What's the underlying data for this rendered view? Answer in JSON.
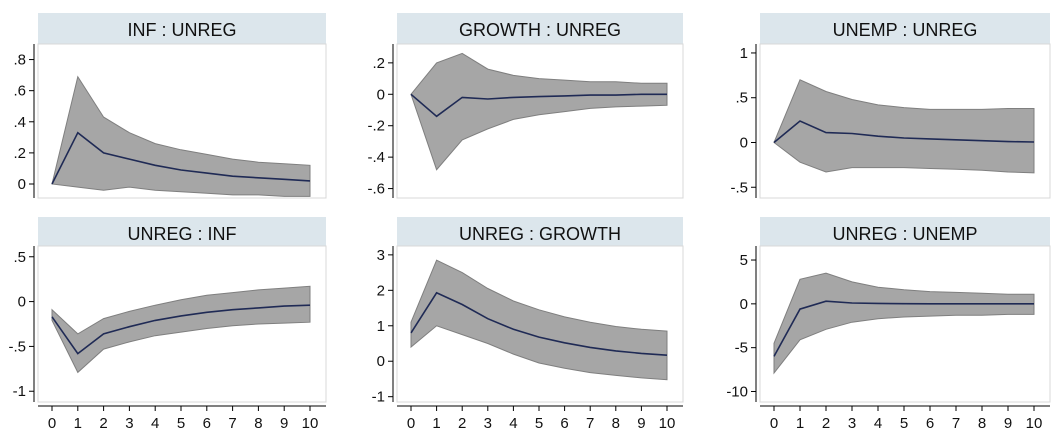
{
  "colors": {
    "band_fill": "#a6a6a6",
    "band_stroke": "#7f7f7f",
    "line": "#1f2a55",
    "title_bg": "#dce6ec",
    "plot_bg": "#ffffff",
    "frame": "#d8d8d8",
    "axis": "#000000"
  },
  "chart_data": [
    {
      "type": "area",
      "title": "INF : UNREG",
      "x": [
        0,
        1,
        2,
        3,
        4,
        5,
        6,
        7,
        8,
        9,
        10
      ],
      "series": [
        {
          "values": [
            0,
            0.33,
            0.2,
            0.16,
            0.12,
            0.09,
            0.07,
            0.05,
            0.04,
            0.03,
            0.02
          ]
        },
        {
          "values": [
            0,
            0.69,
            0.43,
            0.33,
            0.26,
            0.22,
            0.19,
            0.16,
            0.14,
            0.13,
            0.12
          ]
        },
        {
          "values": [
            0,
            -0.02,
            -0.04,
            -0.02,
            -0.04,
            -0.05,
            -0.06,
            -0.07,
            -0.07,
            -0.08,
            -0.08
          ]
        }
      ],
      "ylim": [
        -0.09,
        0.9
      ],
      "yticks": [
        0,
        0.2,
        0.4,
        0.6,
        0.8
      ],
      "ytick_labels": [
        "0",
        ".2",
        ".4",
        ".6",
        ".8"
      ],
      "xticks": [],
      "xtick_labels": []
    },
    {
      "type": "area",
      "title": "GROWTH : UNREG",
      "x": [
        0,
        1,
        2,
        3,
        4,
        5,
        6,
        7,
        8,
        9,
        10
      ],
      "series": [
        {
          "values": [
            0,
            -0.14,
            -0.02,
            -0.03,
            -0.02,
            -0.015,
            -0.01,
            -0.005,
            -0.005,
            0,
            0
          ]
        },
        {
          "values": [
            0,
            0.2,
            0.26,
            0.16,
            0.12,
            0.1,
            0.09,
            0.08,
            0.08,
            0.07,
            0.07
          ]
        },
        {
          "values": [
            0,
            -0.48,
            -0.29,
            -0.22,
            -0.16,
            -0.13,
            -0.11,
            -0.09,
            -0.08,
            -0.075,
            -0.07
          ]
        }
      ],
      "ylim": [
        -0.66,
        0.32
      ],
      "yticks": [
        0.2,
        0,
        -0.2,
        -0.4,
        -0.6
      ],
      "ytick_labels": [
        ".2",
        "0",
        "-.2",
        "-.4",
        "-.6"
      ],
      "xticks": [],
      "xtick_labels": []
    },
    {
      "type": "area",
      "title": "UNEMP : UNREG",
      "x": [
        0,
        1,
        2,
        3,
        4,
        5,
        6,
        7,
        8,
        9,
        10
      ],
      "series": [
        {
          "values": [
            0,
            0.24,
            0.11,
            0.1,
            0.07,
            0.05,
            0.04,
            0.03,
            0.02,
            0.01,
            0.005
          ]
        },
        {
          "values": [
            0,
            0.7,
            0.57,
            0.48,
            0.42,
            0.39,
            0.37,
            0.37,
            0.37,
            0.38,
            0.38
          ]
        },
        {
          "values": [
            0,
            -0.22,
            -0.33,
            -0.28,
            -0.28,
            -0.28,
            -0.29,
            -0.3,
            -0.31,
            -0.33,
            -0.34
          ]
        }
      ],
      "ylim": [
        -0.62,
        1.1
      ],
      "yticks": [
        1,
        0.5,
        0,
        -0.5
      ],
      "ytick_labels": [
        "1",
        ".5",
        "0",
        "-.5"
      ],
      "xticks": [],
      "xtick_labels": []
    },
    {
      "type": "area",
      "title": "UNREG : INF",
      "x": [
        0,
        1,
        2,
        3,
        4,
        5,
        6,
        7,
        8,
        9,
        10
      ],
      "series": [
        {
          "values": [
            -0.17,
            -0.58,
            -0.36,
            -0.28,
            -0.21,
            -0.16,
            -0.12,
            -0.09,
            -0.07,
            -0.05,
            -0.04
          ]
        },
        {
          "values": [
            -0.09,
            -0.36,
            -0.19,
            -0.11,
            -0.04,
            0.02,
            0.07,
            0.1,
            0.13,
            0.15,
            0.17
          ]
        },
        {
          "values": [
            -0.21,
            -0.79,
            -0.53,
            -0.45,
            -0.38,
            -0.34,
            -0.3,
            -0.27,
            -0.25,
            -0.24,
            -0.23
          ]
        }
      ],
      "ylim": [
        -1.12,
        0.62
      ],
      "yticks": [
        0.5,
        0,
        -0.5,
        -1
      ],
      "ytick_labels": [
        ".5",
        "0",
        "-.5",
        "-1"
      ],
      "xticks": [
        0,
        1,
        2,
        3,
        4,
        5,
        6,
        7,
        8,
        9,
        10
      ],
      "xtick_labels": [
        "0",
        "1",
        "2",
        "3",
        "4",
        "5",
        "6",
        "7",
        "8",
        "9",
        "10"
      ]
    },
    {
      "type": "area",
      "title": "UNREG : GROWTH",
      "x": [
        0,
        1,
        2,
        3,
        4,
        5,
        6,
        7,
        8,
        9,
        10
      ],
      "series": [
        {
          "values": [
            0.8,
            1.93,
            1.6,
            1.2,
            0.9,
            0.68,
            0.52,
            0.39,
            0.29,
            0.22,
            0.17
          ]
        },
        {
          "values": [
            1.1,
            2.85,
            2.5,
            2.05,
            1.7,
            1.45,
            1.25,
            1.1,
            0.98,
            0.9,
            0.85
          ]
        },
        {
          "values": [
            0.4,
            1.0,
            0.75,
            0.5,
            0.2,
            -0.05,
            -0.2,
            -0.32,
            -0.4,
            -0.47,
            -0.52
          ]
        }
      ],
      "ylim": [
        -1.15,
        3.25
      ],
      "yticks": [
        3,
        2,
        1,
        0,
        -1
      ],
      "ytick_labels": [
        "3",
        "2",
        "1",
        "0",
        "-1"
      ],
      "xticks": [
        0,
        1,
        2,
        3,
        4,
        5,
        6,
        7,
        8,
        9,
        10
      ],
      "xtick_labels": [
        "0",
        "1",
        "2",
        "3",
        "4",
        "5",
        "6",
        "7",
        "8",
        "9",
        "10"
      ]
    },
    {
      "type": "area",
      "title": "UNREG : UNEMP",
      "x": [
        0,
        1,
        2,
        3,
        4,
        5,
        6,
        7,
        8,
        9,
        10
      ],
      "series": [
        {
          "values": [
            -6.0,
            -0.6,
            0.3,
            0.1,
            0.05,
            0.02,
            0,
            0,
            0,
            0,
            0
          ]
        },
        {
          "values": [
            -4.5,
            2.8,
            3.5,
            2.5,
            1.9,
            1.6,
            1.4,
            1.3,
            1.2,
            1.1,
            1.1
          ]
        },
        {
          "values": [
            -7.9,
            -4.1,
            -2.9,
            -2.1,
            -1.7,
            -1.5,
            -1.4,
            -1.3,
            -1.3,
            -1.2,
            -1.2
          ]
        }
      ],
      "ylim": [
        -11.2,
        6.6
      ],
      "yticks": [
        5,
        0,
        -5,
        -10
      ],
      "ytick_labels": [
        "5",
        "0",
        "-5",
        "-10"
      ],
      "xticks": [
        0,
        1,
        2,
        3,
        4,
        5,
        6,
        7,
        8,
        9,
        10
      ],
      "xtick_labels": [
        "0",
        "1",
        "2",
        "3",
        "4",
        "5",
        "6",
        "7",
        "8",
        "9",
        "10"
      ]
    }
  ]
}
